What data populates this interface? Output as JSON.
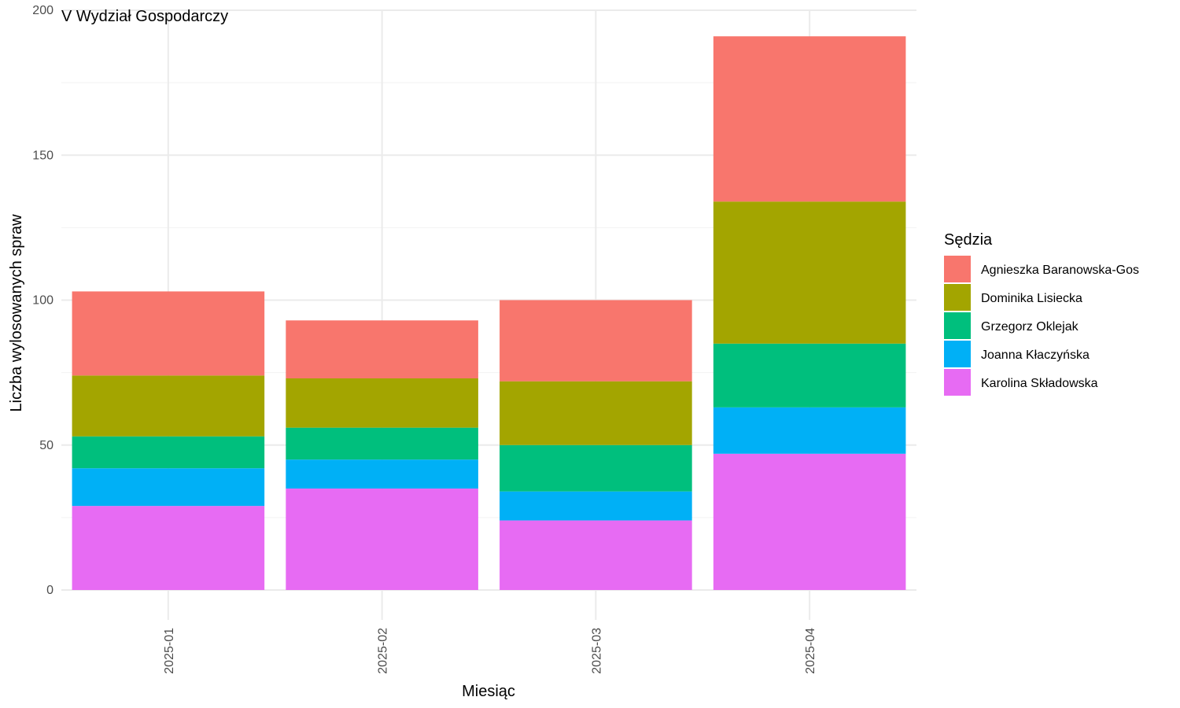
{
  "chart_data": {
    "type": "bar",
    "stacked": true,
    "title": "V Wydział Gospodarczy",
    "xlabel": "Miesiąc",
    "ylabel": "Liczba wylosowanych spraw",
    "categories": [
      "2025-01",
      "2025-02",
      "2025-03",
      "2025-04"
    ],
    "ylim": [
      0,
      200
    ],
    "yticks": [
      0,
      50,
      100,
      150,
      200
    ],
    "grid": true,
    "legend": {
      "title": "Sędzia",
      "position": "right"
    },
    "series": [
      {
        "name": "Karolina Składowska",
        "color": "#E76BF3",
        "values": [
          29,
          35,
          24,
          47
        ]
      },
      {
        "name": "Joanna Kłaczyńska",
        "color": "#00B0F6",
        "values": [
          13,
          10,
          10,
          16
        ]
      },
      {
        "name": "Grzegorz Oklejak",
        "color": "#00BF7D",
        "values": [
          11,
          11,
          16,
          22
        ]
      },
      {
        "name": "Dominika Lisiecka",
        "color": "#A3A500",
        "values": [
          21,
          17,
          22,
          49
        ]
      },
      {
        "name": "Agnieszka Baranowska-Gos",
        "color": "#F8766D",
        "values": [
          29,
          20,
          28,
          57
        ]
      }
    ],
    "legend_order": [
      "Agnieszka Baranowska-Gos",
      "Dominika Lisiecka",
      "Grzegorz Oklejak",
      "Joanna Kłaczyńska",
      "Karolina Składowska"
    ]
  }
}
